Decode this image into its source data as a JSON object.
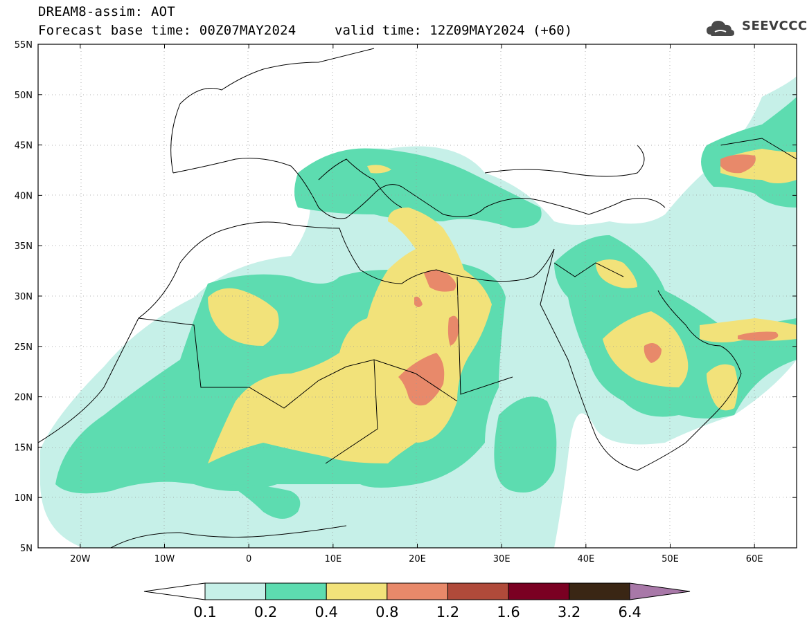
{
  "header": {
    "title": "DREAM8-assim: AOT",
    "base_time": "Forecast base time: 00Z07MAY2024",
    "valid_time": "valid time: 12Z09MAY2024 (+60)",
    "logo_text": "SEEVCCC"
  },
  "map": {
    "projection": "lat-lon",
    "lon_range": [
      -25,
      65
    ],
    "lat_range": [
      5,
      55
    ],
    "lat_labels": [
      "55N",
      "50N",
      "45N",
      "40N",
      "35N",
      "30N",
      "25N",
      "20N",
      "15N",
      "10N",
      "5N"
    ],
    "lon_labels": [
      "20W",
      "10W",
      "0",
      "10E",
      "20E",
      "30E",
      "40E",
      "50E",
      "60E"
    ],
    "grid": "dotted",
    "logo_icon": "cloud-icon"
  },
  "colorbar": {
    "labels": [
      "0.1",
      "0.2",
      "0.4",
      "0.8",
      "1.2",
      "1.6",
      "3.2",
      "6.4"
    ],
    "colors": [
      "#c6f0e8",
      "#5ddcb0",
      "#f2e27a",
      "#e8896a",
      "#b04a3a",
      "#7a0022",
      "#3a2614",
      "#a878a8"
    ]
  }
}
